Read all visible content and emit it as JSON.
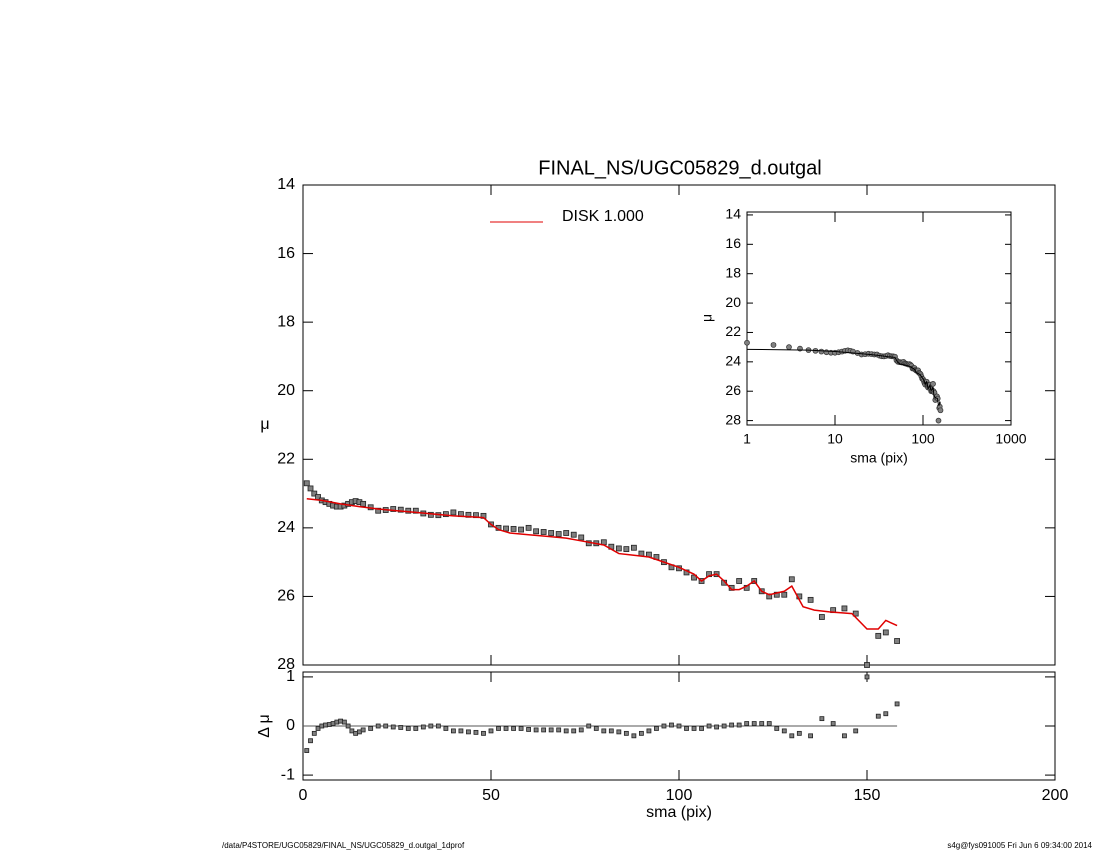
{
  "chart_data": [
    {
      "type": "scatter",
      "title": "FINAL_NS/UGC05829_d.outgal",
      "ylabel": "μ",
      "ylim": [
        14,
        28
      ],
      "yreverse": true,
      "yticks": [
        14,
        16,
        18,
        20,
        22,
        24,
        26,
        28
      ],
      "x": [
        1,
        2,
        3,
        4,
        5,
        6,
        7,
        8,
        9,
        10,
        11,
        12,
        13,
        14,
        15,
        16,
        18,
        20,
        22,
        24,
        26,
        28,
        30,
        32,
        34,
        36,
        38,
        40,
        42,
        44,
        46,
        48,
        50,
        52,
        54,
        56,
        58,
        60,
        62,
        64,
        66,
        68,
        70,
        72,
        74,
        76,
        78,
        80,
        82,
        84,
        86,
        88,
        90,
        92,
        94,
        96,
        98,
        100,
        102,
        104,
        106,
        108,
        110,
        112,
        114,
        116,
        118,
        120,
        122,
        124,
        126,
        128,
        130,
        132,
        135,
        138,
        141,
        144,
        147,
        150,
        153,
        155,
        158
      ],
      "values": [
        22.7,
        22.85,
        23.0,
        23.1,
        23.2,
        23.25,
        23.3,
        23.35,
        23.38,
        23.38,
        23.35,
        23.3,
        23.25,
        23.22,
        23.25,
        23.3,
        23.4,
        23.5,
        23.48,
        23.45,
        23.47,
        23.5,
        23.5,
        23.58,
        23.62,
        23.63,
        23.6,
        23.55,
        23.6,
        23.62,
        23.63,
        23.65,
        23.9,
        24.0,
        24.02,
        24.03,
        24.05,
        24.0,
        24.1,
        24.12,
        24.15,
        24.18,
        24.15,
        24.2,
        24.28,
        24.45,
        24.45,
        24.42,
        24.55,
        24.6,
        24.62,
        24.58,
        24.75,
        24.78,
        24.85,
        25.0,
        25.15,
        25.18,
        25.3,
        25.45,
        25.55,
        25.35,
        25.35,
        25.6,
        25.75,
        25.55,
        25.75,
        25.55,
        25.85,
        26.0,
        25.95,
        25.95,
        25.5,
        26.0,
        26.1,
        26.6,
        26.4,
        26.35,
        26.5,
        28.0,
        27.15,
        27.05,
        27.3
      ],
      "color": "#808080",
      "series": [
        {
          "name": "DISK  1.000",
          "color": "#e00000",
          "x": [
            1,
            5,
            10,
            15,
            20,
            25,
            30,
            35,
            40,
            45,
            48,
            50,
            52,
            55,
            60,
            65,
            70,
            75,
            80,
            84,
            88,
            92,
            96,
            100,
            104,
            106,
            108,
            110,
            112,
            114,
            116,
            118,
            120,
            122,
            124,
            126,
            128,
            130,
            133,
            136,
            140,
            146,
            150,
            153,
            155,
            158
          ],
          "values": [
            23.15,
            23.2,
            23.3,
            23.38,
            23.45,
            23.5,
            23.55,
            23.6,
            23.65,
            23.68,
            23.7,
            23.9,
            24.05,
            24.15,
            24.2,
            24.25,
            24.3,
            24.4,
            24.5,
            24.75,
            24.8,
            24.85,
            25.0,
            25.15,
            25.35,
            25.55,
            25.4,
            25.35,
            25.55,
            25.8,
            25.8,
            25.7,
            25.55,
            25.85,
            25.95,
            25.9,
            25.85,
            25.7,
            26.3,
            26.4,
            26.45,
            26.5,
            26.95,
            26.95,
            26.7,
            26.85
          ]
        }
      ]
    },
    {
      "type": "scatter",
      "ylabel": "Δ μ",
      "xlabel": "sma (pix)",
      "xlim": [
        0,
        200
      ],
      "xticks": [
        0,
        50,
        100,
        150,
        200
      ],
      "ylim": [
        -1.1,
        1.1
      ],
      "yticks": [
        -1,
        0,
        1
      ],
      "values": [
        -0.5,
        -0.3,
        -0.15,
        -0.05,
        0.0,
        0.02,
        0.03,
        0.05,
        0.08,
        0.1,
        0.08,
        0.0,
        -0.1,
        -0.15,
        -0.12,
        -0.08,
        -0.05,
        0,
        0,
        -0.02,
        -0.03,
        -0.05,
        -0.05,
        -0.02,
        0,
        0,
        -0.05,
        -0.1,
        -0.1,
        -0.12,
        -0.13,
        -0.15,
        -0.1,
        -0.05,
        -0.05,
        -0.05,
        -0.05,
        -0.07,
        -0.08,
        -0.08,
        -0.08,
        -0.08,
        -0.1,
        -0.1,
        -0.08,
        0,
        -0.05,
        -0.1,
        -0.1,
        -0.12,
        -0.15,
        -0.2,
        -0.15,
        -0.1,
        -0.05,
        0,
        0.02,
        0,
        -0.05,
        -0.05,
        -0.05,
        0,
        -0.02,
        0,
        0.02,
        0.02,
        0.05,
        0.05,
        0.05,
        0.05,
        -0.05,
        -0.1,
        -0.2,
        -0.15,
        -0.2,
        0.15,
        0.05,
        -0.2,
        -0.1,
        1.0,
        0.2,
        0.25,
        0.45
      ],
      "color": "#808080"
    },
    {
      "type": "scatter",
      "ylabel": "μ",
      "xlabel": "sma (pix)",
      "xlog": true,
      "xlim": [
        1,
        1000
      ],
      "xticks": [
        1,
        10,
        100,
        1000
      ],
      "ylim": [
        13.8,
        28.3
      ],
      "yreverse": true,
      "yticks": [
        14,
        16,
        18,
        20,
        22,
        24,
        26,
        28
      ]
    }
  ],
  "footer": {
    "left": "/data/P4STORE/UGC05829/FINAL_NS/UGC05829_d.outgal_1dprof",
    "right": "s4g@fys091005  Fri Jun  6 09:34:00 2014"
  }
}
